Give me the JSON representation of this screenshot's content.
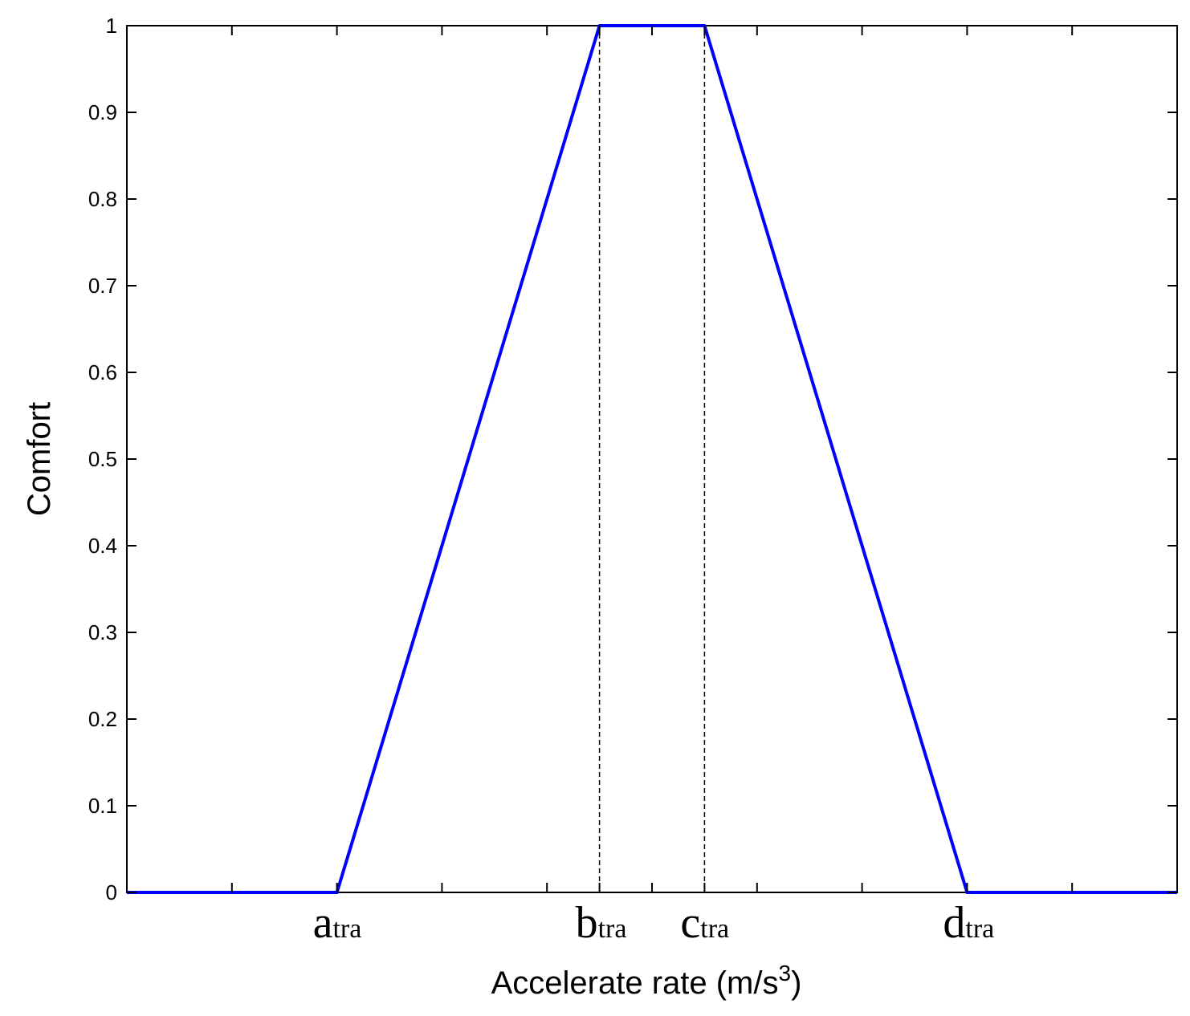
{
  "chart_data": {
    "type": "line",
    "title": "",
    "xlabel": "Accelerate rate (m/s",
    "xlabel_superscript": "3",
    "xlabel_close": ")",
    "ylabel": "Comfort",
    "ylim": [
      0,
      1
    ],
    "xlim": [
      0,
      10
    ],
    "y_ticks": [
      "0",
      "0.1",
      "0.2",
      "0.3",
      "0.4",
      "0.5",
      "0.6",
      "0.7",
      "0.8",
      "0.9",
      "1"
    ],
    "x_ticks": [
      1,
      2,
      3,
      4,
      4.5,
      5,
      5.5,
      6,
      7,
      8,
      9
    ],
    "x_param_labels": [
      {
        "main": "a",
        "sub": "tra",
        "x": 2
      },
      {
        "main": "b",
        "sub": "tra",
        "x": 4.5
      },
      {
        "main": "c",
        "sub": "tra",
        "x": 5.5
      },
      {
        "main": "d",
        "sub": "tra",
        "x": 8
      }
    ],
    "series": [
      {
        "color": "#0000ff",
        "x": [
          0,
          2,
          4.5,
          5.5,
          8,
          10
        ],
        "y": [
          0,
          0,
          1,
          1,
          0,
          0
        ]
      }
    ],
    "reference_lines": [
      {
        "x": 4.5,
        "style": "dashed",
        "color": "#000000"
      },
      {
        "x": 5.5,
        "style": "dashed",
        "color": "#000000"
      }
    ],
    "grid": false,
    "legend": "none"
  }
}
